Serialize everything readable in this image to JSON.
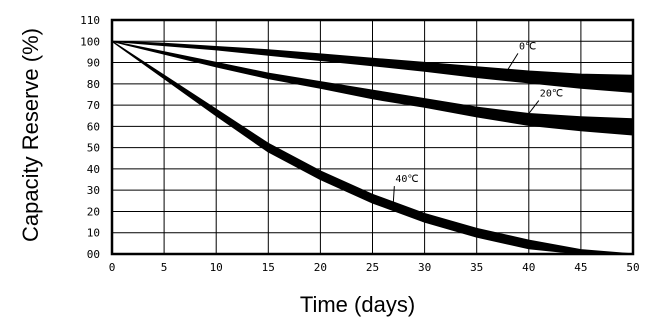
{
  "chart_data": {
    "type": "area",
    "title": "",
    "xlabel": "Time (days)",
    "ylabel": "Capacity Reserve (%)",
    "xlim": [
      0,
      50
    ],
    "ylim": [
      0,
      110
    ],
    "grid": true,
    "x_ticks": [
      "0",
      "5",
      "10",
      "15",
      "20",
      "25",
      "30",
      "35",
      "40",
      "45",
      "50"
    ],
    "y_ticks": [
      "00",
      "10",
      "20",
      "30",
      "40",
      "50",
      "60",
      "70",
      "80",
      "90",
      "100",
      "110"
    ],
    "x": [
      0,
      5,
      10,
      15,
      20,
      25,
      30,
      35,
      40,
      45,
      50
    ],
    "series": [
      {
        "name": "0℃",
        "upper": [
          100,
          99,
          97.5,
          96,
          94,
          92,
          90,
          88,
          86,
          84.5,
          84
        ],
        "lower": [
          100,
          98,
          96,
          93.5,
          91,
          88.5,
          86,
          83,
          80.5,
          78,
          76
        ]
      },
      {
        "name": "20℃",
        "upper": [
          100,
          95,
          90,
          85,
          81,
          77,
          73,
          69,
          66,
          64.5,
          63.5
        ],
        "lower": [
          100,
          94,
          88,
          82.5,
          78,
          73,
          69,
          64.5,
          60.5,
          58,
          56
        ]
      },
      {
        "name": "40℃",
        "upper": [
          100,
          84,
          68,
          52,
          39,
          28,
          19,
          12,
          6.5,
          2,
          0
        ],
        "lower": [
          100,
          82.5,
          65,
          48,
          35,
          24,
          15,
          8,
          2.5,
          0,
          0
        ]
      }
    ]
  }
}
